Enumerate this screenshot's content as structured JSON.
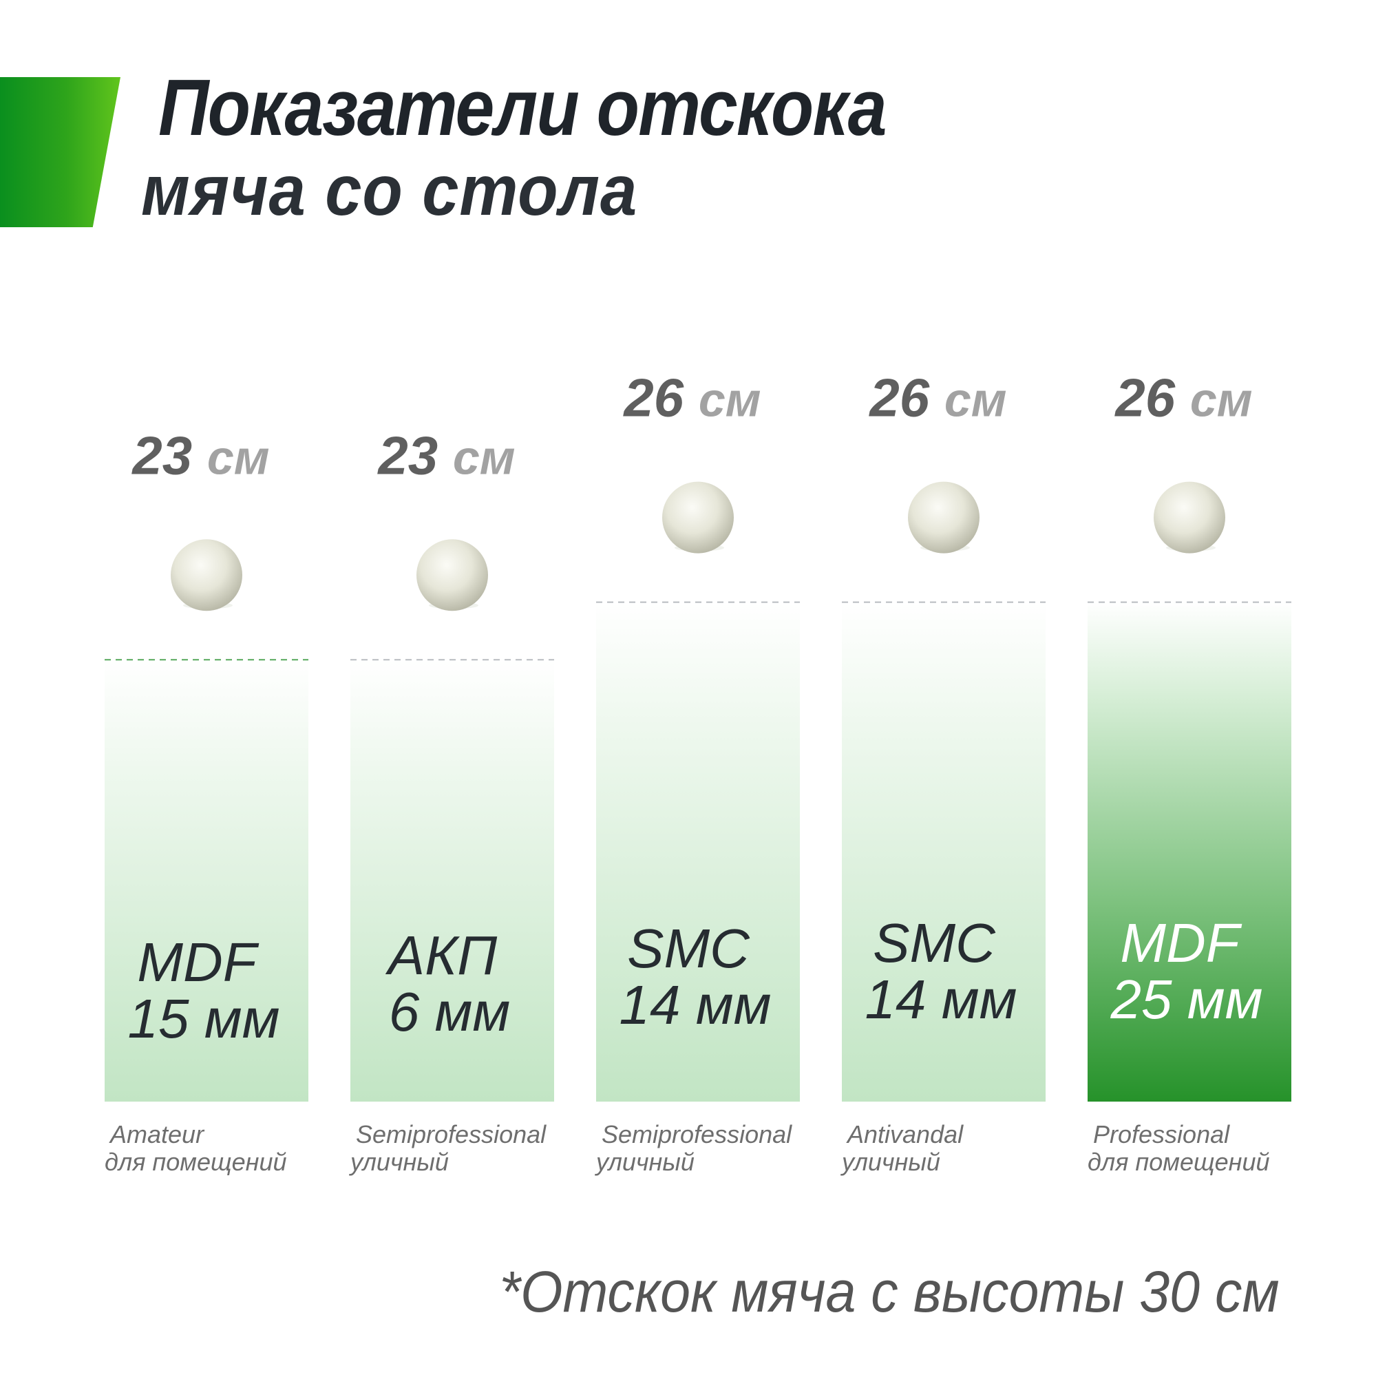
{
  "header": {
    "title_line1": "Показатели отскока",
    "title_line2": "мяча со стола"
  },
  "colors": {
    "accent": "#1f9a1f",
    "pale_bar_bottom": "#c2e5c4",
    "highlight_bar_bottom": "#26922a",
    "bounce_number": "#5f5f5f",
    "bounce_unit": "#a2a2a2"
  },
  "footnote": "*Отскок мяча с высоты 30 см",
  "chart_data": {
    "type": "bar",
    "unit": "см",
    "ylim": [
      0,
      30
    ],
    "categories": [
      "MDF 15 мм",
      "АКП 6 мм",
      "SMC 14 мм",
      "SMC 14 мм",
      "MDF 25 мм"
    ],
    "values": [
      23,
      23,
      26,
      26,
      26
    ],
    "value_labels": [
      {
        "number": "23",
        "unit": "см"
      },
      {
        "number": "23",
        "unit": "см"
      },
      {
        "number": "26",
        "unit": "см"
      },
      {
        "number": "26",
        "unit": "см"
      },
      {
        "number": "26",
        "unit": "см"
      }
    ],
    "bars": [
      {
        "material": "MDF",
        "thickness": "15 мм",
        "class_name": "Amateur",
        "usage": "для помещений",
        "highlight": false
      },
      {
        "material": "АКП",
        "thickness": "6 мм",
        "class_name": "Semiprofessional",
        "usage": "уличный",
        "highlight": false
      },
      {
        "material": "SMC",
        "thickness": "14 мм",
        "class_name": "Semiprofessional",
        "usage": "уличный",
        "highlight": false
      },
      {
        "material": "SMC",
        "thickness": "14 мм",
        "class_name": "Antivandal",
        "usage": "уличный",
        "highlight": false
      },
      {
        "material": "MDF",
        "thickness": "25 мм",
        "class_name": "Professional",
        "usage": "для помещений",
        "highlight": true
      }
    ],
    "marker": "ball-icon"
  }
}
